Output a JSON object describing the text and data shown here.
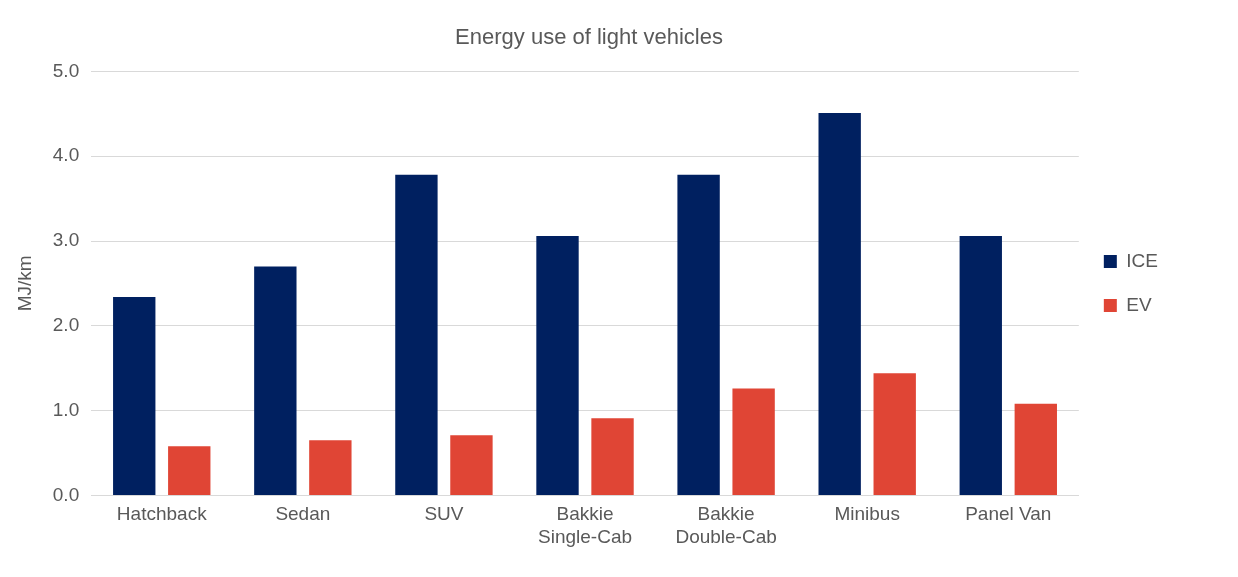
{
  "chart_data": {
    "type": "bar",
    "title": "Energy use of light vehicles",
    "ylabel": "MJ/km",
    "categories": [
      "Hatchback",
      "Sedan",
      "SUV",
      "Bakkie Single-Cab",
      "Bakkie Double-Cab",
      "Minibus",
      "Panel Van"
    ],
    "series": [
      {
        "name": "ICE",
        "color": "#002060",
        "values": [
          2.34,
          2.7,
          3.78,
          3.06,
          3.78,
          4.51,
          3.06
        ]
      },
      {
        "name": "EV",
        "color": "#e04535",
        "values": [
          0.58,
          0.65,
          0.71,
          0.91,
          1.26,
          1.44,
          1.08
        ]
      }
    ],
    "ylim": [
      0,
      5
    ],
    "yticks": [
      {
        "value": 0,
        "label": "0.0"
      },
      {
        "value": 1,
        "label": "1.0"
      },
      {
        "value": 2,
        "label": "2.0"
      },
      {
        "value": 3,
        "label": "3.0"
      },
      {
        "value": 4,
        "label": "4.0"
      },
      {
        "value": 5,
        "label": "5.0"
      }
    ],
    "grid": "y",
    "legend": "right"
  }
}
